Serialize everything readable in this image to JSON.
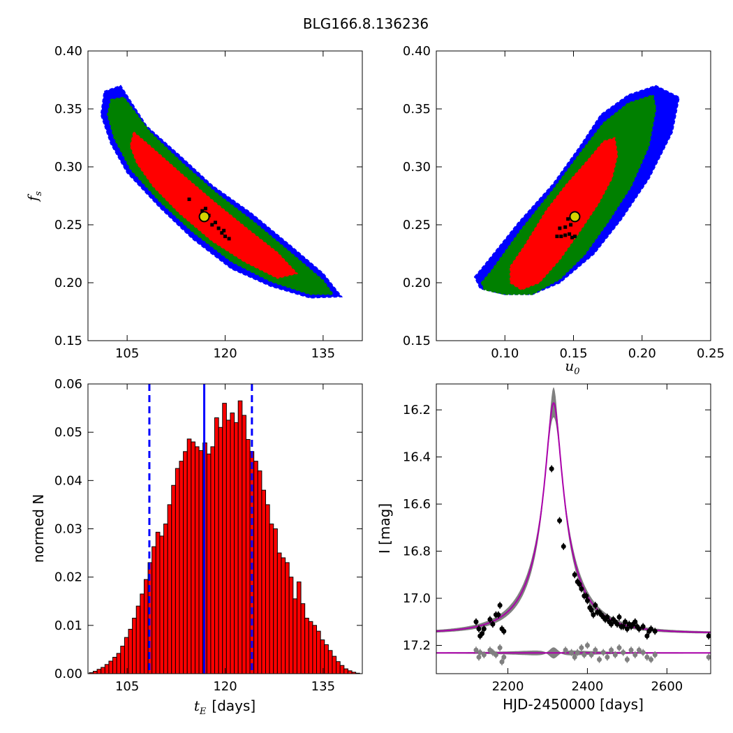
{
  "figure_title": "BLG166.8.136236",
  "colors": {
    "one_sigma": "#ff0000",
    "two_sigma": "#008000",
    "three_sigma": "#0000ff",
    "chain": "#000000",
    "best_fit": "#d4d400",
    "bar": "#ff0000",
    "median": "#0000ff",
    "model": "#aa00aa",
    "band": "#808080"
  },
  "chart_data": [
    {
      "id": "tE-fs",
      "type": "heatmap",
      "xlabel": "",
      "ylabel": "f",
      "ylabel_sub": "s",
      "xlim": [
        99,
        141
      ],
      "ylim": [
        0.15,
        0.4
      ],
      "xticks": [
        "105",
        "120",
        "135"
      ],
      "xtick_values": [
        105,
        120,
        135
      ],
      "yticks": [
        "0.15",
        "0.20",
        "0.25",
        "0.30",
        "0.35",
        "0.40"
      ],
      "ytick_values": [
        0.15,
        0.2,
        0.25,
        0.3,
        0.35,
        0.4
      ],
      "best_fit": [
        116.8,
        0.257
      ],
      "chain_points": [
        [
          114.5,
          0.272
        ],
        [
          116.5,
          0.262
        ],
        [
          117.5,
          0.258
        ],
        [
          118.5,
          0.252
        ],
        [
          119.0,
          0.247
        ],
        [
          119.5,
          0.243
        ],
        [
          120.0,
          0.24
        ],
        [
          120.6,
          0.238
        ],
        [
          117.0,
          0.264
        ],
        [
          118.0,
          0.25
        ],
        [
          119.8,
          0.245
        ]
      ],
      "contours": {
        "three_sigma": [
          [
            101.5,
            0.365
          ],
          [
            104.0,
            0.37
          ],
          [
            108.0,
            0.335
          ],
          [
            113.0,
            0.31
          ],
          [
            118.0,
            0.284
          ],
          [
            124.0,
            0.26
          ],
          [
            130.0,
            0.232
          ],
          [
            135.0,
            0.208
          ],
          [
            137.8,
            0.188
          ],
          [
            133.0,
            0.187
          ],
          [
            127.0,
            0.197
          ],
          [
            121.0,
            0.212
          ],
          [
            115.0,
            0.238
          ],
          [
            110.0,
            0.265
          ],
          [
            105.0,
            0.295
          ],
          [
            102.5,
            0.32
          ],
          [
            101.0,
            0.345
          ]
        ],
        "two_sigma": [
          [
            102.5,
            0.358
          ],
          [
            104.5,
            0.36
          ],
          [
            108.5,
            0.33
          ],
          [
            113.5,
            0.303
          ],
          [
            118.5,
            0.278
          ],
          [
            124.5,
            0.252
          ],
          [
            130.0,
            0.226
          ],
          [
            135.0,
            0.202
          ],
          [
            136.5,
            0.19
          ],
          [
            133.0,
            0.19
          ],
          [
            127.0,
            0.201
          ],
          [
            121.0,
            0.218
          ],
          [
            115.0,
            0.244
          ],
          [
            110.0,
            0.27
          ],
          [
            105.5,
            0.298
          ],
          [
            103.0,
            0.325
          ],
          [
            102.0,
            0.345
          ]
        ],
        "one_sigma": [
          [
            106.0,
            0.33
          ],
          [
            108.5,
            0.318
          ],
          [
            113.5,
            0.293
          ],
          [
            118.5,
            0.269
          ],
          [
            123.5,
            0.246
          ],
          [
            128.0,
            0.226
          ],
          [
            131.0,
            0.208
          ],
          [
            128.0,
            0.204
          ],
          [
            123.0,
            0.218
          ],
          [
            118.0,
            0.236
          ],
          [
            113.0,
            0.26
          ],
          [
            109.0,
            0.283
          ],
          [
            106.5,
            0.303
          ],
          [
            105.5,
            0.318
          ]
        ]
      }
    },
    {
      "id": "u0-fs",
      "type": "heatmap",
      "xlabel": "u",
      "xlabel_sub": "0",
      "ylabel": "",
      "xlim": [
        0.05,
        0.25
      ],
      "ylim": [
        0.15,
        0.4
      ],
      "xticks": [
        "0.10",
        "0.15",
        "0.20",
        "0.25"
      ],
      "xtick_values": [
        0.1,
        0.15,
        0.2,
        0.25
      ],
      "yticks": [
        "0.15",
        "0.20",
        "0.25",
        "0.30",
        "0.35",
        "0.40"
      ],
      "ytick_values": [
        0.15,
        0.2,
        0.25,
        0.3,
        0.35,
        0.4
      ],
      "best_fit": [
        0.151,
        0.257
      ],
      "chain_points": [
        [
          0.138,
          0.24
        ],
        [
          0.141,
          0.24
        ],
        [
          0.144,
          0.241
        ],
        [
          0.147,
          0.242
        ],
        [
          0.149,
          0.239
        ],
        [
          0.151,
          0.24
        ],
        [
          0.14,
          0.247
        ],
        [
          0.144,
          0.248
        ],
        [
          0.148,
          0.25
        ],
        [
          0.146,
          0.255
        ]
      ],
      "contours": {
        "three_sigma": [
          [
            0.078,
            0.205
          ],
          [
            0.085,
            0.215
          ],
          [
            0.11,
            0.252
          ],
          [
            0.135,
            0.285
          ],
          [
            0.155,
            0.318
          ],
          [
            0.17,
            0.345
          ],
          [
            0.19,
            0.362
          ],
          [
            0.21,
            0.37
          ],
          [
            0.227,
            0.36
          ],
          [
            0.222,
            0.33
          ],
          [
            0.205,
            0.29
          ],
          [
            0.185,
            0.255
          ],
          [
            0.165,
            0.225
          ],
          [
            0.14,
            0.2
          ],
          [
            0.12,
            0.19
          ],
          [
            0.1,
            0.19
          ],
          [
            0.082,
            0.195
          ]
        ],
        "two_sigma": [
          [
            0.083,
            0.2
          ],
          [
            0.09,
            0.21
          ],
          [
            0.112,
            0.246
          ],
          [
            0.135,
            0.28
          ],
          [
            0.155,
            0.312
          ],
          [
            0.172,
            0.338
          ],
          [
            0.19,
            0.355
          ],
          [
            0.208,
            0.362
          ],
          [
            0.21,
            0.35
          ],
          [
            0.205,
            0.318
          ],
          [
            0.192,
            0.283
          ],
          [
            0.175,
            0.252
          ],
          [
            0.158,
            0.224
          ],
          [
            0.14,
            0.203
          ],
          [
            0.12,
            0.19
          ],
          [
            0.1,
            0.19
          ],
          [
            0.085,
            0.194
          ]
        ],
        "one_sigma": [
          [
            0.104,
            0.214
          ],
          [
            0.115,
            0.233
          ],
          [
            0.13,
            0.262
          ],
          [
            0.145,
            0.285
          ],
          [
            0.16,
            0.305
          ],
          [
            0.172,
            0.322
          ],
          [
            0.18,
            0.325
          ],
          [
            0.182,
            0.31
          ],
          [
            0.178,
            0.29
          ],
          [
            0.168,
            0.268
          ],
          [
            0.155,
            0.245
          ],
          [
            0.14,
            0.22
          ],
          [
            0.125,
            0.2
          ],
          [
            0.112,
            0.194
          ],
          [
            0.104,
            0.2
          ]
        ]
      }
    },
    {
      "id": "tE-hist",
      "type": "bar",
      "xlabel": "t",
      "xlabel_sub": "E",
      "xlabel_unit": "[days]",
      "ylabel": "normed N",
      "xlim": [
        99,
        141
      ],
      "ylim": [
        0.0,
        0.06
      ],
      "xticks": [
        "105",
        "120",
        "135"
      ],
      "xtick_values": [
        105,
        120,
        135
      ],
      "yticks": [
        "0.00",
        "0.01",
        "0.02",
        "0.03",
        "0.04",
        "0.05",
        "0.06"
      ],
      "ytick_values": [
        0.0,
        0.01,
        0.02,
        0.03,
        0.04,
        0.05,
        0.06
      ],
      "bin_start": 99.2,
      "bin_width": 0.6,
      "values": [
        0.0002,
        0.0005,
        0.0009,
        0.0013,
        0.0019,
        0.0026,
        0.0034,
        0.0042,
        0.0057,
        0.0075,
        0.0092,
        0.0115,
        0.014,
        0.0165,
        0.0195,
        0.023,
        0.0263,
        0.0293,
        0.0285,
        0.031,
        0.035,
        0.039,
        0.0425,
        0.044,
        0.046,
        0.0486,
        0.048,
        0.047,
        0.0462,
        0.0478,
        0.0455,
        0.047,
        0.053,
        0.051,
        0.056,
        0.0525,
        0.054,
        0.052,
        0.0565,
        0.0535,
        0.0485,
        0.046,
        0.044,
        0.042,
        0.038,
        0.035,
        0.031,
        0.03,
        0.025,
        0.024,
        0.023,
        0.02,
        0.0155,
        0.019,
        0.0145,
        0.0115,
        0.0108,
        0.01,
        0.0088,
        0.007,
        0.006,
        0.0048,
        0.0036,
        0.0025,
        0.0017,
        0.001,
        0.0006,
        0.0003,
        0.0001
      ],
      "median": 116.8,
      "lower_bound": 108.4,
      "upper_bound": 124.1
    },
    {
      "id": "light-curve",
      "type": "scatter",
      "xlabel": "HJD-2450000 [days]",
      "ylabel": "I [mag]",
      "xlim": [
        2020,
        2710
      ],
      "ylim": [
        17.32,
        16.09
      ],
      "xticks": [
        "2200",
        "2400",
        "2600"
      ],
      "xtick_values": [
        2200,
        2400,
        2600
      ],
      "yticks": [
        "16.2",
        "16.4",
        "16.6",
        "16.8",
        "17.0",
        "17.2"
      ],
      "ytick_values": [
        16.2,
        16.4,
        16.6,
        16.8,
        17.0,
        17.2
      ],
      "model": {
        "t0": 2315,
        "tE": 116.8,
        "u0": 0.151,
        "fs": 0.257,
        "baseline": 17.148
      },
      "residual_offset": 17.232,
      "data_points": [
        [
          2120,
          17.1
        ],
        [
          2127,
          17.13
        ],
        [
          2130,
          17.16
        ],
        [
          2135,
          17.15
        ],
        [
          2140,
          17.13
        ],
        [
          2155,
          17.09
        ],
        [
          2162,
          17.11
        ],
        [
          2170,
          17.07
        ],
        [
          2176,
          17.07
        ],
        [
          2180,
          17.03
        ],
        [
          2185,
          17.13
        ],
        [
          2190,
          17.14
        ],
        [
          2310,
          16.45
        ],
        [
          2330,
          16.67
        ],
        [
          2340,
          16.78
        ],
        [
          2368,
          16.9
        ],
        [
          2375,
          16.93
        ],
        [
          2380,
          16.94
        ],
        [
          2385,
          16.96
        ],
        [
          2392,
          16.99
        ],
        [
          2397,
          16.99
        ],
        [
          2400,
          17.01
        ],
        [
          2406,
          17.04
        ],
        [
          2410,
          17.05
        ],
        [
          2415,
          17.07
        ],
        [
          2420,
          17.03
        ],
        [
          2425,
          17.06
        ],
        [
          2430,
          17.06
        ],
        [
          2435,
          17.07
        ],
        [
          2440,
          17.08
        ],
        [
          2445,
          17.09
        ],
        [
          2450,
          17.08
        ],
        [
          2455,
          17.1
        ],
        [
          2460,
          17.11
        ],
        [
          2465,
          17.09
        ],
        [
          2470,
          17.1
        ],
        [
          2475,
          17.11
        ],
        [
          2480,
          17.08
        ],
        [
          2485,
          17.12
        ],
        [
          2490,
          17.12
        ],
        [
          2495,
          17.1
        ],
        [
          2500,
          17.13
        ],
        [
          2505,
          17.11
        ],
        [
          2510,
          17.12
        ],
        [
          2515,
          17.11
        ],
        [
          2520,
          17.1
        ],
        [
          2525,
          17.12
        ],
        [
          2530,
          17.13
        ],
        [
          2540,
          17.12
        ],
        [
          2550,
          17.16
        ],
        [
          2555,
          17.14
        ],
        [
          2560,
          17.13
        ],
        [
          2570,
          17.14
        ],
        [
          2705,
          17.16
        ]
      ],
      "residual_points": [
        [
          2120,
          17.22
        ],
        [
          2127,
          17.25
        ],
        [
          2130,
          17.23
        ],
        [
          2140,
          17.24
        ],
        [
          2155,
          17.22
        ],
        [
          2162,
          17.23
        ],
        [
          2170,
          17.24
        ],
        [
          2180,
          17.21
        ],
        [
          2185,
          17.27
        ],
        [
          2190,
          17.25
        ],
        [
          2345,
          17.22
        ],
        [
          2360,
          17.23
        ],
        [
          2368,
          17.25
        ],
        [
          2375,
          17.23
        ],
        [
          2385,
          17.21
        ],
        [
          2392,
          17.24
        ],
        [
          2400,
          17.2
        ],
        [
          2410,
          17.24
        ],
        [
          2420,
          17.22
        ],
        [
          2430,
          17.26
        ],
        [
          2440,
          17.23
        ],
        [
          2450,
          17.25
        ],
        [
          2460,
          17.22
        ],
        [
          2470,
          17.24
        ],
        [
          2480,
          17.21
        ],
        [
          2490,
          17.23
        ],
        [
          2500,
          17.26
        ],
        [
          2510,
          17.22
        ],
        [
          2520,
          17.24
        ],
        [
          2530,
          17.22
        ],
        [
          2540,
          17.23
        ],
        [
          2550,
          17.25
        ],
        [
          2560,
          17.26
        ],
        [
          2570,
          17.24
        ],
        [
          2705,
          17.25
        ]
      ]
    }
  ]
}
